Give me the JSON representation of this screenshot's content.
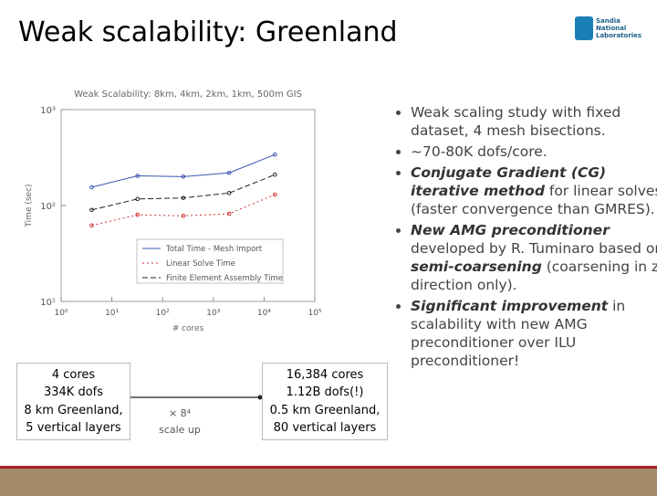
{
  "header": {
    "title": "Weak scalability: Greenland",
    "logo": [
      "Sandia",
      "National",
      "Laboratories"
    ]
  },
  "chart_data": {
    "type": "line",
    "title": "Weak Scalability: 8km, 4km, 2km, 1km, 500m GIS",
    "x_label": "# cores",
    "y_label": "Time (sec)",
    "log_x": true,
    "log_y": true,
    "x": [
      4,
      32,
      256,
      2048,
      16384
    ],
    "series": [
      {
        "name": "Total Time - Mesh Import",
        "color": "#3a55b0",
        "style": "solid",
        "values": [
          155,
          204,
          200,
          219,
          340
        ]
      },
      {
        "name": "Linear Solve Time",
        "color": "#d03030",
        "style": "dotted",
        "values": [
          62,
          80,
          78,
          82,
          130
        ]
      },
      {
        "name": "Finite Element Assembly Time",
        "color": "#222222",
        "style": "dashed",
        "values": [
          90,
          117,
          120,
          135,
          210
        ]
      }
    ],
    "xlim": [
      1,
      100000
    ],
    "xticks": [
      {
        "value": 1,
        "label": "10⁰"
      },
      {
        "value": 10,
        "label": "10¹"
      },
      {
        "value": 100,
        "label": "10²"
      },
      {
        "value": 1000,
        "label": "10³"
      },
      {
        "value": 10000,
        "label": "10⁴"
      },
      {
        "value": 100000,
        "label": "10⁵"
      }
    ],
    "ylim": [
      10,
      1000
    ],
    "yticks": [
      {
        "value": 10,
        "label": "10¹"
      },
      {
        "value": 100,
        "label": "10²"
      },
      {
        "value": 1000,
        "label": "10³"
      }
    ]
  },
  "boxes": {
    "left": [
      "4 cores",
      "334K dofs",
      "8 km Greenland,",
      "5 vertical layers"
    ],
    "right": [
      "16,384 cores",
      "1.12B dofs(!)",
      "0.5 km Greenland,",
      "80 vertical layers"
    ],
    "factor": "× 8⁴",
    "arrow_label": "scale up"
  },
  "bullets": [
    [
      {
        "text": "Weak scaling study with fixed dataset, 4 mesh bisections."
      }
    ],
    [
      {
        "text": "~70-80K dofs/core."
      }
    ],
    [
      {
        "text": "Conjugate Gradient (CG) iterative method",
        "emphasis": true
      },
      {
        "text": " for linear solves (faster convergence than GMRES)."
      }
    ],
    [
      {
        "text": "New AMG preconditioner",
        "emphasis": true
      },
      {
        "text": " developed by R. Tuminaro based on "
      },
      {
        "text": "semi-coarsening",
        "emphasis": true
      },
      {
        "text": " (coarsening in z-direction only)."
      }
    ],
    [
      {
        "text": "Significant improvement",
        "emphasis": true
      },
      {
        "text": " in scalability with new AMG preconditioner over ILU preconditioner!"
      }
    ]
  ]
}
